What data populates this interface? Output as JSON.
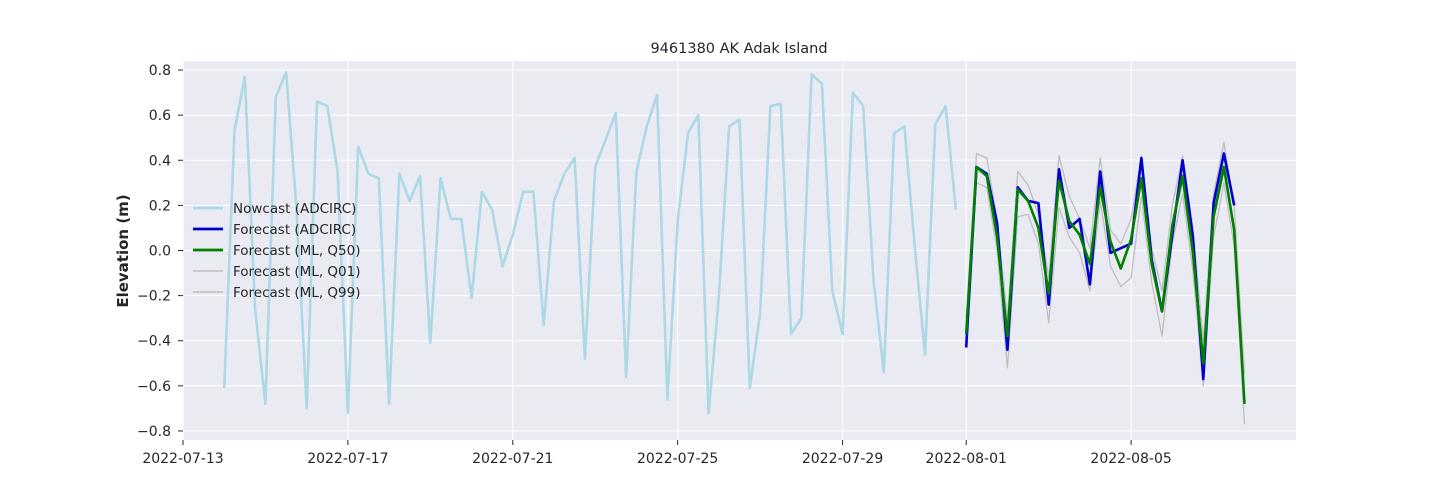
{
  "chart_data": {
    "type": "line",
    "title": "9461380 AK Adak Island",
    "xlabel": "",
    "ylabel": "Elevation (m)",
    "grid": true,
    "legend_position": "center-left",
    "x_ticks": [
      "2022-07-13",
      "2022-07-17",
      "2022-07-21",
      "2022-07-25",
      "2022-07-29",
      "2022-08-01",
      "2022-08-05"
    ],
    "y_ticks": [
      "0.8",
      "0.6",
      "0.4",
      "0.2",
      "0.0",
      "−0.2",
      "−0.4",
      "−0.6",
      "−0.8"
    ],
    "xlim": [
      "2022-07-13T00:00",
      "2022-08-09T00:00"
    ],
    "ylim": [
      -0.84,
      0.84
    ],
    "series": [
      {
        "name": "Nowcast (ADCIRC)",
        "color": "#add8e6",
        "x": [
          "2022-07-14T00:00",
          "2022-07-14T06:00",
          "2022-07-14T12:00",
          "2022-07-14T18:00",
          "2022-07-15T00:00",
          "2022-07-15T06:00",
          "2022-07-15T12:00",
          "2022-07-15T18:00",
          "2022-07-16T00:00",
          "2022-07-16T06:00",
          "2022-07-16T12:00",
          "2022-07-16T18:00",
          "2022-07-17T00:00",
          "2022-07-17T06:00",
          "2022-07-17T12:00",
          "2022-07-17T18:00",
          "2022-07-18T00:00",
          "2022-07-18T06:00",
          "2022-07-18T12:00",
          "2022-07-18T18:00",
          "2022-07-19T00:00",
          "2022-07-19T06:00",
          "2022-07-19T12:00",
          "2022-07-19T18:00",
          "2022-07-20T00:00",
          "2022-07-20T06:00",
          "2022-07-20T12:00",
          "2022-07-20T18:00",
          "2022-07-21T00:00",
          "2022-07-21T06:00",
          "2022-07-21T12:00",
          "2022-07-21T18:00",
          "2022-07-22T00:00",
          "2022-07-22T06:00",
          "2022-07-22T12:00",
          "2022-07-22T18:00",
          "2022-07-23T00:00",
          "2022-07-23T06:00",
          "2022-07-23T12:00",
          "2022-07-23T18:00",
          "2022-07-24T00:00",
          "2022-07-24T06:00",
          "2022-07-24T12:00",
          "2022-07-24T18:00",
          "2022-07-25T00:00",
          "2022-07-25T06:00",
          "2022-07-25T12:00",
          "2022-07-25T18:00",
          "2022-07-26T00:00",
          "2022-07-26T06:00",
          "2022-07-26T12:00",
          "2022-07-26T18:00",
          "2022-07-27T00:00",
          "2022-07-27T06:00",
          "2022-07-27T12:00",
          "2022-07-27T18:00",
          "2022-07-28T00:00",
          "2022-07-28T06:00",
          "2022-07-28T12:00",
          "2022-07-28T18:00",
          "2022-07-29T00:00",
          "2022-07-29T06:00",
          "2022-07-29T12:00",
          "2022-07-29T18:00",
          "2022-07-30T00:00",
          "2022-07-30T06:00",
          "2022-07-30T12:00",
          "2022-07-30T18:00",
          "2022-07-31T00:00",
          "2022-07-31T06:00",
          "2022-07-31T12:00",
          "2022-07-31T18:00"
        ],
        "y": [
          -0.61,
          0.53,
          0.77,
          -0.26,
          -0.68,
          0.68,
          0.79,
          0.19,
          -0.7,
          0.66,
          0.64,
          0.35,
          -0.72,
          0.46,
          0.34,
          0.32,
          -0.68,
          0.34,
          0.22,
          0.33,
          -0.41,
          0.32,
          0.14,
          0.14,
          -0.21,
          0.26,
          0.18,
          -0.07,
          0.07,
          0.26,
          0.26,
          -0.33,
          0.22,
          0.34,
          0.41,
          -0.48,
          0.37,
          0.49,
          0.61,
          -0.56,
          0.35,
          0.55,
          0.69,
          -0.66,
          0.13,
          0.52,
          0.6,
          -0.72,
          -0.2,
          0.55,
          0.58,
          -0.61,
          -0.28,
          0.64,
          0.65,
          -0.37,
          -0.3,
          0.78,
          0.74,
          -0.18,
          -0.37,
          0.7,
          0.64,
          -0.13,
          -0.54,
          0.52,
          0.55,
          0.02,
          -0.46,
          0.56,
          0.64,
          0.18
        ]
      },
      {
        "name": "Forecast (ADCIRC)",
        "color": "#0000cd",
        "x": [
          "2022-08-01T00:00",
          "2022-08-01T06:00",
          "2022-08-01T12:00",
          "2022-08-01T18:00",
          "2022-08-02T00:00",
          "2022-08-02T06:00",
          "2022-08-02T12:00",
          "2022-08-02T18:00",
          "2022-08-03T00:00",
          "2022-08-03T06:00",
          "2022-08-03T12:00",
          "2022-08-03T18:00",
          "2022-08-04T00:00",
          "2022-08-04T06:00",
          "2022-08-04T12:00",
          "2022-08-04T18:00",
          "2022-08-05T00:00",
          "2022-08-05T06:00",
          "2022-08-05T12:00",
          "2022-08-05T18:00",
          "2022-08-06T00:00",
          "2022-08-06T06:00",
          "2022-08-06T12:00",
          "2022-08-06T18:00",
          "2022-08-07T00:00",
          "2022-08-07T06:00",
          "2022-08-07T12:00",
          "2022-08-07T18:00"
        ],
        "y": [
          -0.43,
          0.37,
          0.34,
          0.12,
          -0.44,
          0.28,
          0.22,
          0.21,
          -0.24,
          0.36,
          0.1,
          0.14,
          -0.15,
          0.35,
          -0.01,
          0.01,
          0.03,
          0.41,
          -0.04,
          -0.27,
          0.07,
          0.4,
          0.06,
          -0.57,
          0.21,
          0.43,
          0.2,
          null
        ]
      },
      {
        "name": "Forecast (ML, Q50)",
        "color": "#008000",
        "x": [
          "2022-08-01T00:00",
          "2022-08-01T06:00",
          "2022-08-01T12:00",
          "2022-08-01T18:00",
          "2022-08-02T00:00",
          "2022-08-02T06:00",
          "2022-08-02T12:00",
          "2022-08-02T18:00",
          "2022-08-03T00:00",
          "2022-08-03T06:00",
          "2022-08-03T12:00",
          "2022-08-03T18:00",
          "2022-08-04T00:00",
          "2022-08-04T06:00",
          "2022-08-04T12:00",
          "2022-08-04T18:00",
          "2022-08-05T00:00",
          "2022-08-05T06:00",
          "2022-08-05T12:00",
          "2022-08-05T18:00",
          "2022-08-06T00:00",
          "2022-08-06T06:00",
          "2022-08-06T12:00",
          "2022-08-06T18:00",
          "2022-08-07T00:00",
          "2022-08-07T06:00",
          "2022-08-07T12:00",
          "2022-08-07T18:00"
        ],
        "y": [
          -0.37,
          0.37,
          0.33,
          0.06,
          -0.38,
          0.27,
          0.22,
          0.1,
          -0.19,
          0.31,
          0.13,
          0.07,
          -0.06,
          0.28,
          0.04,
          -0.08,
          0.05,
          0.32,
          -0.06,
          -0.27,
          0.11,
          0.33,
          -0.01,
          -0.5,
          0.15,
          0.37,
          0.09,
          -0.68
        ]
      },
      {
        "name": "Forecast (ML, Q01)",
        "color": "#bebebe",
        "x": [
          "2022-08-01T00:00",
          "2022-08-01T06:00",
          "2022-08-01T12:00",
          "2022-08-01T18:00",
          "2022-08-02T00:00",
          "2022-08-02T06:00",
          "2022-08-02T12:00",
          "2022-08-02T18:00",
          "2022-08-03T00:00",
          "2022-08-03T06:00",
          "2022-08-03T12:00",
          "2022-08-03T18:00",
          "2022-08-04T00:00",
          "2022-08-04T06:00",
          "2022-08-04T12:00",
          "2022-08-04T18:00",
          "2022-08-05T00:00",
          "2022-08-05T06:00",
          "2022-08-05T12:00",
          "2022-08-05T18:00",
          "2022-08-06T00:00",
          "2022-08-06T06:00",
          "2022-08-06T12:00",
          "2022-08-06T18:00",
          "2022-08-07T00:00",
          "2022-08-07T06:00",
          "2022-08-07T12:00",
          "2022-08-07T18:00"
        ],
        "y": [
          -0.4,
          0.3,
          0.28,
          0.0,
          -0.52,
          0.15,
          0.16,
          0.03,
          -0.32,
          0.19,
          0.06,
          -0.01,
          -0.18,
          0.22,
          -0.07,
          -0.16,
          -0.12,
          0.24,
          -0.14,
          -0.38,
          0.03,
          0.25,
          -0.09,
          -0.6,
          0.06,
          0.3,
          0.02,
          -0.77
        ]
      },
      {
        "name": "Forecast (ML, Q99)",
        "color": "#bebebe",
        "x": [
          "2022-08-01T00:00",
          "2022-08-01T06:00",
          "2022-08-01T12:00",
          "2022-08-01T18:00",
          "2022-08-02T00:00",
          "2022-08-02T06:00",
          "2022-08-02T12:00",
          "2022-08-02T18:00",
          "2022-08-03T00:00",
          "2022-08-03T06:00",
          "2022-08-03T12:00",
          "2022-08-03T18:00",
          "2022-08-04T00:00",
          "2022-08-04T06:00",
          "2022-08-04T12:00",
          "2022-08-04T18:00",
          "2022-08-05T00:00",
          "2022-08-05T06:00",
          "2022-08-05T12:00",
          "2022-08-05T18:00",
          "2022-08-06T00:00",
          "2022-08-06T06:00",
          "2022-08-06T12:00",
          "2022-08-06T18:00",
          "2022-08-07T00:00",
          "2022-08-07T06:00",
          "2022-08-07T12:00",
          "2022-08-07T18:00"
        ],
        "y": [
          -0.3,
          0.43,
          0.41,
          0.14,
          -0.3,
          0.35,
          0.29,
          0.16,
          -0.12,
          0.42,
          0.24,
          0.14,
          0.01,
          0.41,
          0.09,
          0.03,
          0.14,
          0.42,
          0.01,
          -0.18,
          0.2,
          0.42,
          0.1,
          -0.4,
          0.25,
          0.48,
          0.2,
          -0.55
        ]
      }
    ]
  }
}
